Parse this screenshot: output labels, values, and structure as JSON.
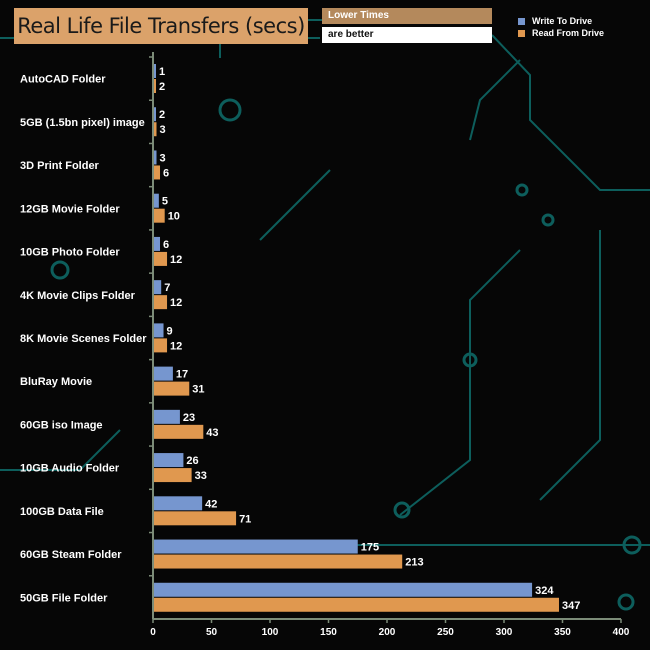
{
  "colors": {
    "write": "#7696cf",
    "read": "#e0984f",
    "axis": "#7c8c78",
    "circuit": "#0d5e5c"
  },
  "header": {
    "title": "Real Life File Transfers (secs)",
    "note_top": "Lower Times",
    "note_bottom": "are better"
  },
  "chart_data": {
    "type": "bar",
    "orientation": "horizontal",
    "title": "Real Life File Transfers (secs)",
    "xlabel": "",
    "ylabel": "",
    "xlim": [
      0,
      400
    ],
    "xticks": [
      0,
      50,
      100,
      150,
      200,
      250,
      300,
      350,
      400
    ],
    "legend_position": "top-right",
    "categories": [
      "AutoCAD Folder",
      "5GB (1.5bn pixel) image",
      "3D Print Folder",
      "12GB Movie Folder",
      "10GB Photo Folder",
      "4K Movie Clips Folder",
      "8K Movie Scenes Folder",
      "BluRay Movie",
      "60GB iso Image",
      "10GB Audio Folder",
      "100GB Data File",
      "60GB Steam Folder",
      "50GB File Folder"
    ],
    "series": [
      {
        "name": "Write To  Drive",
        "values": [
          1,
          2,
          3,
          5,
          6,
          7,
          9,
          17,
          23,
          26,
          42,
          175,
          324
        ]
      },
      {
        "name": "Read From  Drive",
        "values": [
          2,
          3,
          6,
          10,
          12,
          12,
          12,
          31,
          43,
          33,
          71,
          213,
          347
        ]
      }
    ]
  }
}
